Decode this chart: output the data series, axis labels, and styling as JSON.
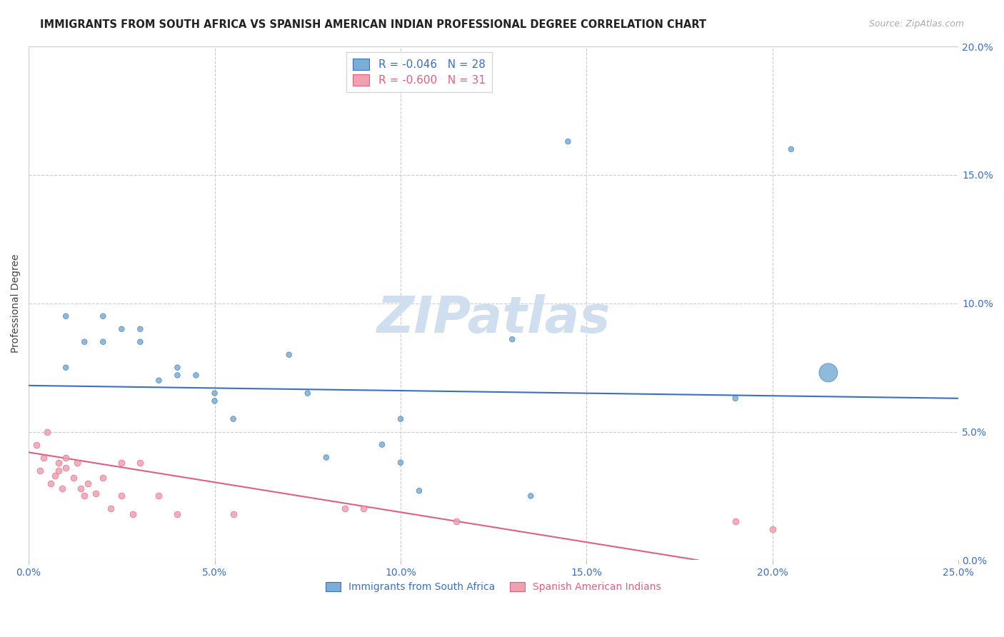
{
  "title": "IMMIGRANTS FROM SOUTH AFRICA VS SPANISH AMERICAN INDIAN PROFESSIONAL DEGREE CORRELATION CHART",
  "source": "Source: ZipAtlas.com",
  "xlabel_color": "#4a90d9",
  "ylabel": "Professional Degree",
  "xlim": [
    0.0,
    0.25
  ],
  "ylim": [
    0.0,
    0.2
  ],
  "xticks": [
    0.0,
    0.05,
    0.1,
    0.15,
    0.2,
    0.25
  ],
  "yticks": [
    0.0,
    0.05,
    0.1,
    0.15,
    0.2
  ],
  "xtick_labels": [
    "0.0%",
    "5.0%",
    "10.0%",
    "15.0%",
    "20.0%",
    "25.0%"
  ],
  "ytick_labels": [
    "",
    "5.0%",
    "10.0%",
    "15.0%",
    "20.0%"
  ],
  "legend_entries": [
    {
      "label": "R = -0.046   N = 28",
      "color": "#aac4e0"
    },
    {
      "label": "R = -0.600   N = 31",
      "color": "#f0a0b0"
    }
  ],
  "legend_labels_bottom": [
    "Immigrants from South Africa",
    "Spanish American Indians"
  ],
  "blue_scatter_x": [
    0.01,
    0.01,
    0.015,
    0.02,
    0.02,
    0.025,
    0.03,
    0.03,
    0.035,
    0.04,
    0.04,
    0.045,
    0.05,
    0.05,
    0.055,
    0.07,
    0.075,
    0.08,
    0.095,
    0.1,
    0.1,
    0.105,
    0.13,
    0.135,
    0.145,
    0.19,
    0.205,
    0.215
  ],
  "blue_scatter_y": [
    0.075,
    0.095,
    0.085,
    0.095,
    0.085,
    0.09,
    0.085,
    0.09,
    0.07,
    0.075,
    0.072,
    0.072,
    0.062,
    0.065,
    0.055,
    0.08,
    0.065,
    0.04,
    0.045,
    0.055,
    0.038,
    0.027,
    0.086,
    0.025,
    0.163,
    0.063,
    0.16,
    0.073
  ],
  "blue_scatter_size": [
    30,
    30,
    30,
    30,
    30,
    30,
    30,
    30,
    30,
    30,
    30,
    30,
    30,
    30,
    30,
    30,
    30,
    30,
    30,
    30,
    30,
    30,
    30,
    30,
    30,
    30,
    30,
    350
  ],
  "pink_scatter_x": [
    0.002,
    0.003,
    0.004,
    0.005,
    0.006,
    0.007,
    0.008,
    0.008,
    0.009,
    0.01,
    0.01,
    0.012,
    0.013,
    0.014,
    0.015,
    0.016,
    0.018,
    0.02,
    0.022,
    0.025,
    0.025,
    0.028,
    0.03,
    0.035,
    0.04,
    0.055,
    0.085,
    0.09,
    0.115,
    0.19,
    0.2
  ],
  "pink_scatter_y": [
    0.045,
    0.035,
    0.04,
    0.05,
    0.03,
    0.033,
    0.038,
    0.035,
    0.028,
    0.04,
    0.036,
    0.032,
    0.038,
    0.028,
    0.025,
    0.03,
    0.026,
    0.032,
    0.02,
    0.025,
    0.038,
    0.018,
    0.038,
    0.025,
    0.018,
    0.018,
    0.02,
    0.02,
    0.015,
    0.015,
    0.012
  ],
  "blue_line_x": [
    0.0,
    0.25
  ],
  "blue_line_y": [
    0.068,
    0.063
  ],
  "pink_line_x": [
    0.0,
    0.18
  ],
  "pink_line_y": [
    0.042,
    0.0
  ],
  "blue_color": "#7aaed6",
  "pink_color": "#f0a0b0",
  "blue_line_color": "#3a6fc4",
  "pink_line_color": "#e06080",
  "watermark": "ZIPatlas",
  "watermark_color": "#d0dff0",
  "background_color": "#ffffff",
  "grid_color": "#cccccc"
}
